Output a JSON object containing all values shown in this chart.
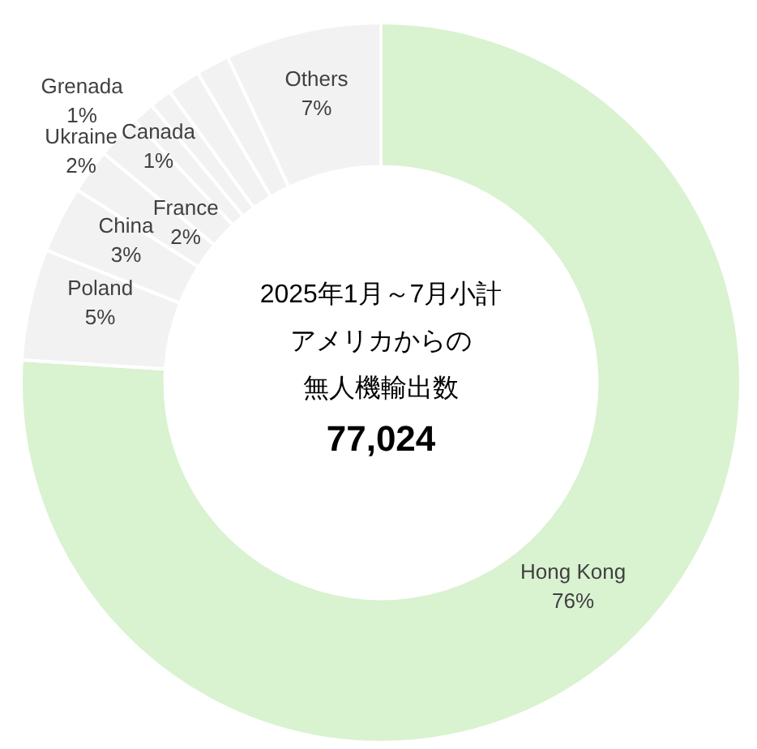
{
  "chart_data": {
    "type": "donut",
    "categories": [
      "Hong Kong",
      "Poland",
      "China",
      "Ukraine",
      "France",
      "Canada",
      "Grenada",
      null,
      null,
      "Others"
    ],
    "values": [
      76,
      5,
      3,
      2,
      2,
      1,
      1,
      1.5,
      1.5,
      7
    ],
    "value_labels": [
      "76%",
      "5%",
      "3%",
      "2%",
      "2%",
      "1%",
      "1%",
      null,
      null,
      "7%"
    ],
    "colors": [
      "#d9f2d0",
      "#f2f2f2",
      "#f2f2f2",
      "#f2f2f2",
      "#f2f2f2",
      "#f2f2f2",
      "#f2f2f2",
      "#f2f2f2",
      "#f2f2f2",
      "#f2f2f2"
    ],
    "annotations": [
      "2025年1月～7月小計",
      "アメリカからの",
      "無人機輸出数",
      "77,024"
    ],
    "legend": false
  }
}
